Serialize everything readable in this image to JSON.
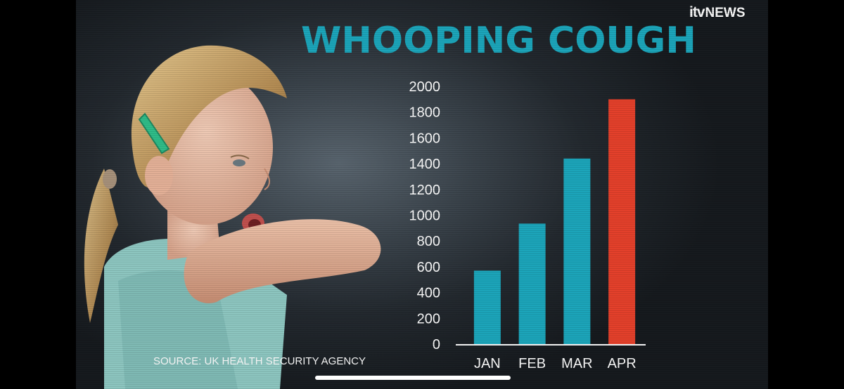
{
  "logo": {
    "itv": "itv",
    "news": "NEWS"
  },
  "title": "WHOOPING COUGH",
  "source": "SOURCE: UK HEALTH SECURITY AGENCY",
  "colors": {
    "teal": "#1ba8bd",
    "highlight": "#e8402a",
    "axis_text": "#ffffff"
  },
  "chart_data": {
    "type": "bar",
    "title": "WHOOPING COUGH",
    "xlabel": "",
    "ylabel": "",
    "categories": [
      "JAN",
      "FEB",
      "MAR",
      "APR"
    ],
    "values": [
      570,
      935,
      1440,
      1900
    ],
    "bar_colors": [
      "#1ba8bd",
      "#1ba8bd",
      "#1ba8bd",
      "#e8402a"
    ],
    "ylim": [
      0,
      2000
    ],
    "yticks": [
      0,
      200,
      400,
      600,
      800,
      1000,
      1200,
      1400,
      1600,
      1800,
      2000
    ],
    "grid": false,
    "legend": "none"
  },
  "photo": {
    "subject": "child-coughing-photo"
  }
}
